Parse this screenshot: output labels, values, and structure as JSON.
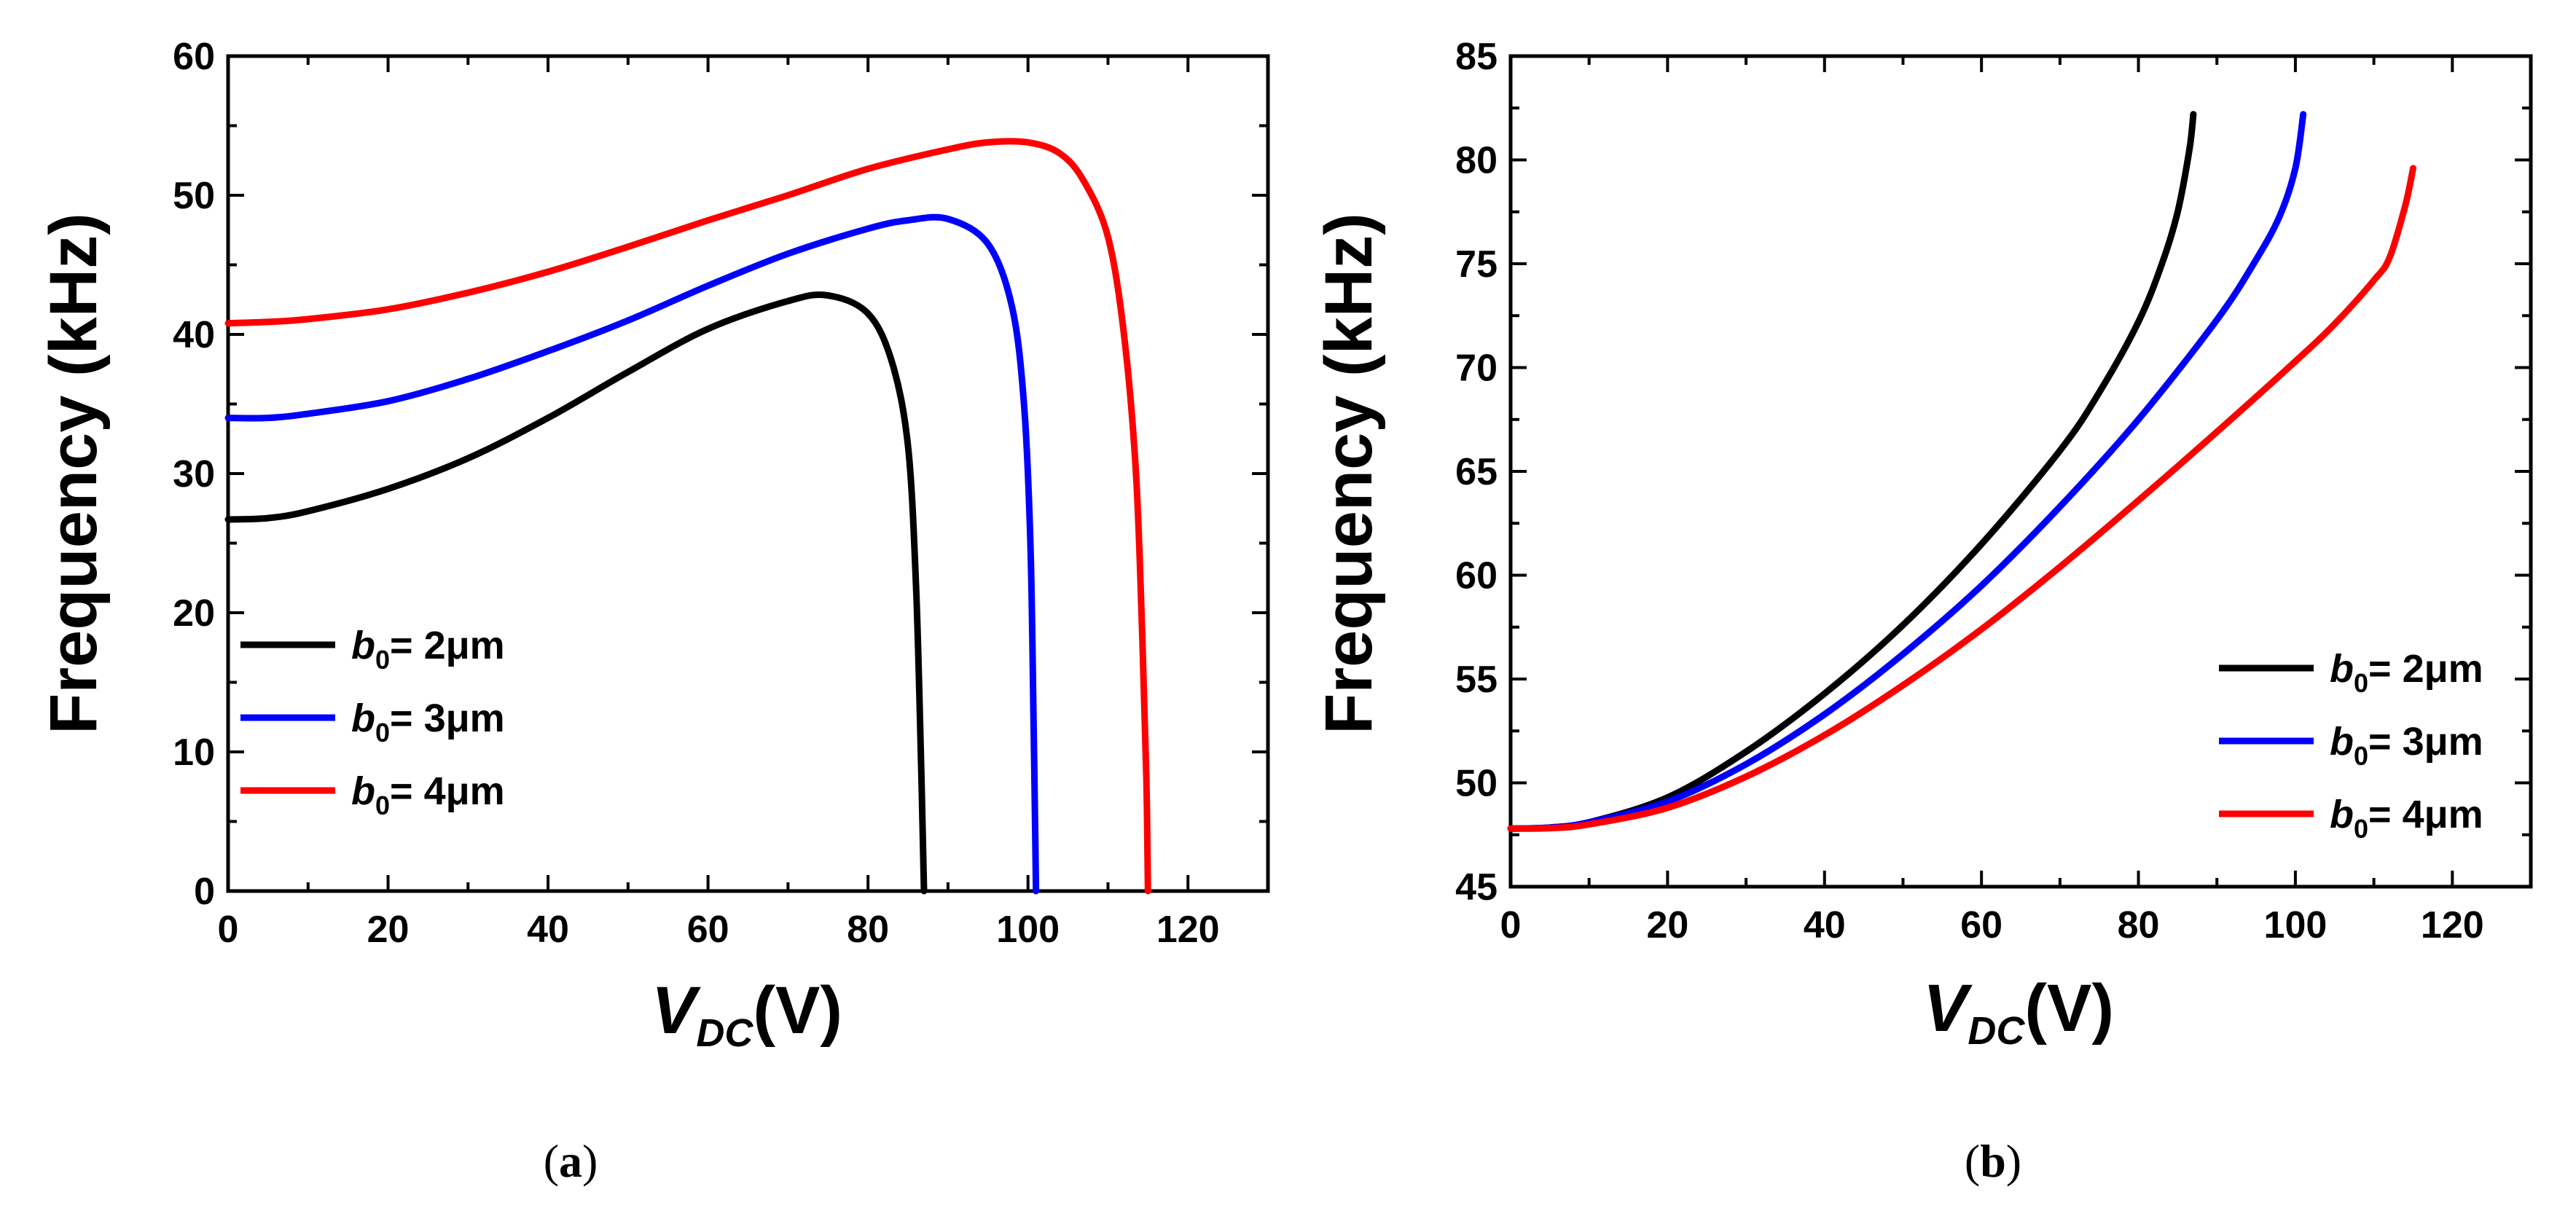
{
  "chart_data": [
    {
      "type": "line",
      "panel_label": "a",
      "xlabel_main": "V",
      "xlabel_sub": "DC",
      "xlabel_unit": "(V)",
      "ylabel": "Frequency (kHz)",
      "xlim": [
        0,
        130
      ],
      "ylim": [
        0,
        60
      ],
      "xticks": [
        0,
        20,
        40,
        60,
        80,
        100,
        120
      ],
      "yticks": [
        0,
        10,
        20,
        30,
        40,
        50,
        60
      ],
      "legend_position": "bottom-left",
      "series": [
        {
          "name": "b0 = 2μm",
          "legend_var": "b",
          "legend_sub": "0",
          "legend_rest": "= 2μm",
          "color": "#000000",
          "x": [
            0,
            5,
            10,
            20,
            30,
            40,
            50,
            60,
            70,
            75,
            80,
            83,
            85,
            86,
            86.6,
            87
          ],
          "y": [
            26.7,
            26.8,
            27.3,
            28.9,
            31.1,
            34.0,
            37.3,
            40.4,
            42.4,
            42.8,
            41.5,
            38.0,
            32.0,
            22.0,
            10.0,
            0
          ]
        },
        {
          "name": "b0 = 3μm",
          "legend_var": "b",
          "legend_sub": "0",
          "legend_rest": "= 3μm",
          "color": "#0000ff",
          "x": [
            0,
            5,
            10,
            20,
            30,
            40,
            50,
            60,
            70,
            80,
            85,
            90,
            95,
            98,
            99.5,
            100.3,
            100.7,
            101
          ],
          "y": [
            34.0,
            34.0,
            34.3,
            35.2,
            36.8,
            38.8,
            41.0,
            43.5,
            45.8,
            47.6,
            48.2,
            48.3,
            46.5,
            42.0,
            35.0,
            25.0,
            12.0,
            0
          ]
        },
        {
          "name": "b0 = 4μm",
          "legend_var": "b",
          "legend_sub": "0",
          "legend_rest": "= 4μm",
          "color": "#ff0000",
          "x": [
            0,
            5,
            10,
            20,
            30,
            40,
            50,
            60,
            70,
            80,
            90,
            95,
            100,
            104,
            107,
            110,
            112,
            113.5,
            114.3,
            114.8,
            115
          ],
          "y": [
            40.8,
            40.9,
            41.1,
            41.8,
            43.0,
            44.5,
            46.3,
            48.2,
            50.0,
            51.9,
            53.3,
            53.8,
            53.8,
            53.0,
            51.0,
            47.0,
            40.0,
            30.0,
            18.0,
            8.0,
            0
          ]
        }
      ]
    },
    {
      "type": "line",
      "panel_label": "b",
      "xlabel_main": "V",
      "xlabel_sub": "DC",
      "xlabel_unit": "(V)",
      "ylabel": "Frequency (kHz)",
      "xlim": [
        0,
        130
      ],
      "ylim": [
        45,
        85
      ],
      "xticks": [
        0,
        20,
        40,
        60,
        80,
        100,
        120
      ],
      "yticks": [
        45,
        50,
        55,
        60,
        65,
        70,
        75,
        80,
        85
      ],
      "legend_position": "bottom-right",
      "series": [
        {
          "name": "b0 = 2μm",
          "legend_var": "b",
          "legend_sub": "0",
          "legend_rest": "= 2μm",
          "color": "#000000",
          "x": [
            0,
            5,
            10,
            20,
            30,
            40,
            50,
            60,
            70,
            75,
            80,
            83,
            85,
            86.5,
            87
          ],
          "y": [
            47.8,
            47.85,
            48.1,
            49.3,
            51.5,
            54.3,
            57.6,
            61.5,
            66.0,
            68.8,
            72.2,
            75.0,
            77.5,
            80.5,
            82.2
          ]
        },
        {
          "name": "b0 = 3μm",
          "legend_var": "b",
          "legend_sub": "0",
          "legend_rest": "= 3μm",
          "color": "#0000ff",
          "x": [
            0,
            5,
            10,
            20,
            30,
            40,
            50,
            60,
            70,
            80,
            90,
            95,
            98,
            100,
            101
          ],
          "y": [
            47.8,
            47.85,
            48.1,
            49.1,
            50.9,
            53.3,
            56.2,
            59.5,
            63.3,
            67.5,
            72.3,
            75.2,
            77.3,
            79.6,
            82.2
          ]
        },
        {
          "name": "b0 = 4μm",
          "legend_var": "b",
          "legend_sub": "0",
          "legend_rest": "= 4μm",
          "color": "#ff0000",
          "x": [
            0,
            5,
            10,
            20,
            30,
            40,
            50,
            60,
            70,
            80,
            90,
            100,
            105,
            110,
            112,
            114,
            115
          ],
          "y": [
            47.8,
            47.82,
            48.0,
            48.8,
            50.3,
            52.3,
            54.7,
            57.4,
            60.4,
            63.6,
            66.9,
            70.3,
            72.1,
            74.2,
            75.3,
            77.8,
            79.6
          ]
        }
      ]
    }
  ]
}
